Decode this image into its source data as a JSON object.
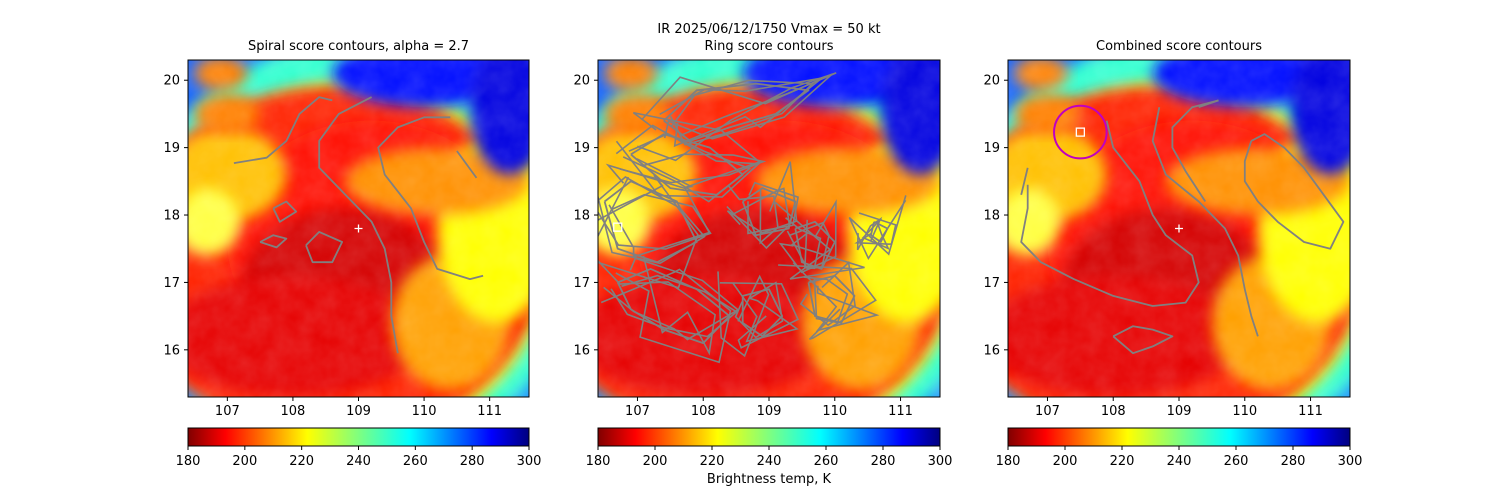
{
  "figure": {
    "suptitle_line1": "IR  2025/06/12/1750    Vmax = 50 kt",
    "colorbar_label": "Brightness temp, K"
  },
  "colors": {
    "contour": "#808080",
    "center_marker": "#ffffff",
    "circle": "#c000c0",
    "box_marker": "#ffffff"
  },
  "colorscale": {
    "name": "jet_r",
    "range": [
      180,
      300
    ],
    "ticks": [
      "180",
      "200",
      "220",
      "240",
      "260",
      "280",
      "300"
    ]
  },
  "chart_data": [
    {
      "type": "heatmap",
      "title": "Spiral score contours, alpha =  2.7",
      "xlim": [
        106.4,
        111.6
      ],
      "ylim": [
        15.3,
        20.3
      ],
      "xticks": [
        "107",
        "108",
        "109",
        "110",
        "111"
      ],
      "yticks": [
        "16",
        "17",
        "18",
        "19",
        "20"
      ],
      "storm_center": [
        109.0,
        17.8
      ],
      "annotations": [
        "center cross at (109.0, 17.8)"
      ],
      "contours": [
        [
          [
            107.1,
            18.77
          ],
          [
            107.6,
            18.85
          ],
          [
            107.9,
            19.1
          ],
          [
            108.1,
            19.5
          ],
          [
            108.4,
            19.75
          ],
          [
            108.6,
            19.7
          ]
        ],
        [
          [
            109.2,
            19.75
          ],
          [
            108.7,
            19.5
          ],
          [
            108.4,
            19.1
          ],
          [
            108.4,
            18.7
          ],
          [
            108.8,
            18.3
          ],
          [
            109.2,
            17.9
          ],
          [
            109.4,
            17.5
          ],
          [
            109.5,
            17.0
          ],
          [
            109.5,
            16.5
          ],
          [
            109.6,
            15.95
          ]
        ],
        [
          [
            110.4,
            19.45
          ],
          [
            110.0,
            19.45
          ],
          [
            109.6,
            19.3
          ],
          [
            109.3,
            19.0
          ],
          [
            109.4,
            18.6
          ],
          [
            109.8,
            18.1
          ],
          [
            110.0,
            17.6
          ],
          [
            110.2,
            17.2
          ],
          [
            110.7,
            17.05
          ],
          [
            110.9,
            17.1
          ]
        ],
        [
          [
            110.5,
            18.95
          ],
          [
            110.8,
            18.55
          ]
        ],
        [
          [
            107.7,
            18.1
          ],
          [
            107.9,
            18.2
          ],
          [
            108.05,
            18.05
          ],
          [
            107.8,
            17.9
          ],
          [
            107.7,
            18.1
          ]
        ],
        [
          [
            107.5,
            17.6
          ],
          [
            107.7,
            17.7
          ],
          [
            107.9,
            17.65
          ],
          [
            107.75,
            17.52
          ],
          [
            107.5,
            17.6
          ]
        ],
        [
          [
            108.2,
            17.55
          ],
          [
            108.4,
            17.75
          ],
          [
            108.75,
            17.6
          ],
          [
            108.6,
            17.3
          ],
          [
            108.3,
            17.3
          ],
          [
            108.2,
            17.55
          ]
        ]
      ]
    },
    {
      "type": "heatmap",
      "title": "Ring score contours",
      "xlim": [
        106.4,
        111.6
      ],
      "ylim": [
        15.3,
        20.3
      ],
      "xticks": [
        "107",
        "108",
        "109",
        "110",
        "111"
      ],
      "yticks": [
        "16",
        "17",
        "18",
        "19",
        "20"
      ],
      "box_marker": [
        106.7,
        17.82
      ],
      "annotations": [
        "dense ring-score contour field over the western half of the storm",
        "square marker at (106.7, 17.82)"
      ],
      "contours": [
        [
          [
            107.4,
            19.4
          ],
          [
            107.9,
            19.85
          ],
          [
            108.8,
            19.95
          ],
          [
            109.6,
            19.85
          ],
          [
            109.1,
            19.5
          ],
          [
            108.4,
            19.3
          ],
          [
            107.8,
            19.1
          ],
          [
            107.4,
            19.4
          ]
        ],
        [
          [
            106.9,
            18.9
          ],
          [
            107.4,
            19.2
          ],
          [
            108.1,
            19.0
          ],
          [
            108.6,
            18.6
          ],
          [
            108.2,
            18.3
          ],
          [
            107.5,
            18.4
          ],
          [
            106.9,
            18.9
          ]
        ],
        [
          [
            106.5,
            18.2
          ],
          [
            106.9,
            18.5
          ],
          [
            107.6,
            18.2
          ],
          [
            107.9,
            17.6
          ],
          [
            107.3,
            17.3
          ],
          [
            106.7,
            17.5
          ],
          [
            106.5,
            18.2
          ]
        ],
        [
          [
            106.7,
            17.0
          ],
          [
            107.2,
            17.2
          ],
          [
            107.9,
            16.9
          ],
          [
            108.4,
            16.5
          ],
          [
            108.0,
            16.1
          ],
          [
            107.4,
            16.3
          ],
          [
            106.9,
            16.6
          ],
          [
            106.7,
            17.0
          ]
        ],
        [
          [
            108.6,
            18.2
          ],
          [
            108.9,
            18.4
          ],
          [
            109.4,
            18.2
          ],
          [
            109.3,
            17.8
          ],
          [
            108.8,
            17.7
          ],
          [
            108.6,
            18.2
          ]
        ],
        [
          [
            109.4,
            17.8
          ],
          [
            109.7,
            17.9
          ],
          [
            110.0,
            17.6
          ],
          [
            109.8,
            17.2
          ],
          [
            109.5,
            17.3
          ],
          [
            109.4,
            17.8
          ]
        ],
        [
          [
            109.6,
            17.0
          ],
          [
            110.0,
            17.1
          ],
          [
            110.3,
            16.8
          ],
          [
            110.1,
            16.4
          ],
          [
            109.7,
            16.5
          ],
          [
            109.6,
            17.0
          ]
        ],
        [
          [
            108.6,
            16.8
          ],
          [
            109.0,
            16.9
          ],
          [
            109.2,
            16.5
          ],
          [
            108.9,
            16.2
          ],
          [
            108.6,
            16.4
          ],
          [
            108.6,
            16.8
          ]
        ],
        [
          [
            110.6,
            17.9
          ],
          [
            110.8,
            17.8
          ],
          [
            110.7,
            17.6
          ],
          [
            110.55,
            17.7
          ],
          [
            110.6,
            17.9
          ]
        ]
      ]
    },
    {
      "type": "heatmap",
      "title": "Combined score contours",
      "xlim": [
        106.4,
        111.6
      ],
      "ylim": [
        15.3,
        20.3
      ],
      "xticks": [
        "107",
        "108",
        "109",
        "110",
        "111"
      ],
      "yticks": [
        "16",
        "17",
        "18",
        "19",
        "20"
      ],
      "storm_center": [
        109.0,
        17.8
      ],
      "box_marker": [
        107.5,
        19.23
      ],
      "circle": {
        "center": [
          107.5,
          19.23
        ],
        "radius_deg": 0.4
      },
      "annotations": [
        "center cross at (109.0, 17.8)",
        "square marker inside circle at (107.5, 19.23)"
      ],
      "contours": [
        [
          [
            106.7,
            18.45
          ],
          [
            106.7,
            18.1
          ],
          [
            106.6,
            17.6
          ],
          [
            106.9,
            17.3
          ],
          [
            107.4,
            17.05
          ],
          [
            108.0,
            16.8
          ],
          [
            108.6,
            16.65
          ],
          [
            109.1,
            16.7
          ],
          [
            109.3,
            17.0
          ],
          [
            109.2,
            17.4
          ],
          [
            108.8,
            17.7
          ],
          [
            108.6,
            18.0
          ],
          [
            108.4,
            18.5
          ],
          [
            108.0,
            19.0
          ],
          [
            107.9,
            19.4
          ]
        ],
        [
          [
            108.7,
            19.6
          ],
          [
            108.6,
            19.1
          ],
          [
            108.8,
            18.6
          ],
          [
            109.3,
            18.2
          ],
          [
            109.7,
            17.8
          ],
          [
            109.9,
            17.4
          ],
          [
            110.0,
            16.9
          ],
          [
            110.1,
            16.5
          ],
          [
            110.2,
            16.2
          ]
        ],
        [
          [
            109.6,
            19.7
          ],
          [
            109.2,
            19.6
          ],
          [
            108.9,
            19.3
          ],
          [
            108.9,
            19.0
          ],
          [
            109.1,
            18.65
          ],
          [
            109.4,
            18.2
          ]
        ],
        [
          [
            109.6,
            19.7
          ],
          [
            109.3,
            19.6
          ]
        ],
        [
          [
            110.1,
            19.1
          ],
          [
            110.3,
            19.2
          ],
          [
            110.6,
            19.0
          ],
          [
            110.9,
            18.7
          ],
          [
            111.2,
            18.3
          ],
          [
            111.5,
            17.9
          ],
          [
            111.3,
            17.5
          ],
          [
            110.9,
            17.6
          ],
          [
            110.5,
            17.9
          ],
          [
            110.2,
            18.2
          ],
          [
            110.0,
            18.5
          ],
          [
            110.0,
            18.8
          ],
          [
            110.1,
            19.1
          ]
        ],
        [
          [
            108.0,
            16.2
          ],
          [
            108.3,
            16.35
          ],
          [
            108.6,
            16.3
          ],
          [
            108.9,
            16.2
          ],
          [
            108.6,
            16.05
          ],
          [
            108.3,
            15.95
          ],
          [
            108.0,
            16.2
          ]
        ],
        [
          [
            106.6,
            18.3
          ],
          [
            106.7,
            18.7
          ]
        ]
      ]
    }
  ]
}
